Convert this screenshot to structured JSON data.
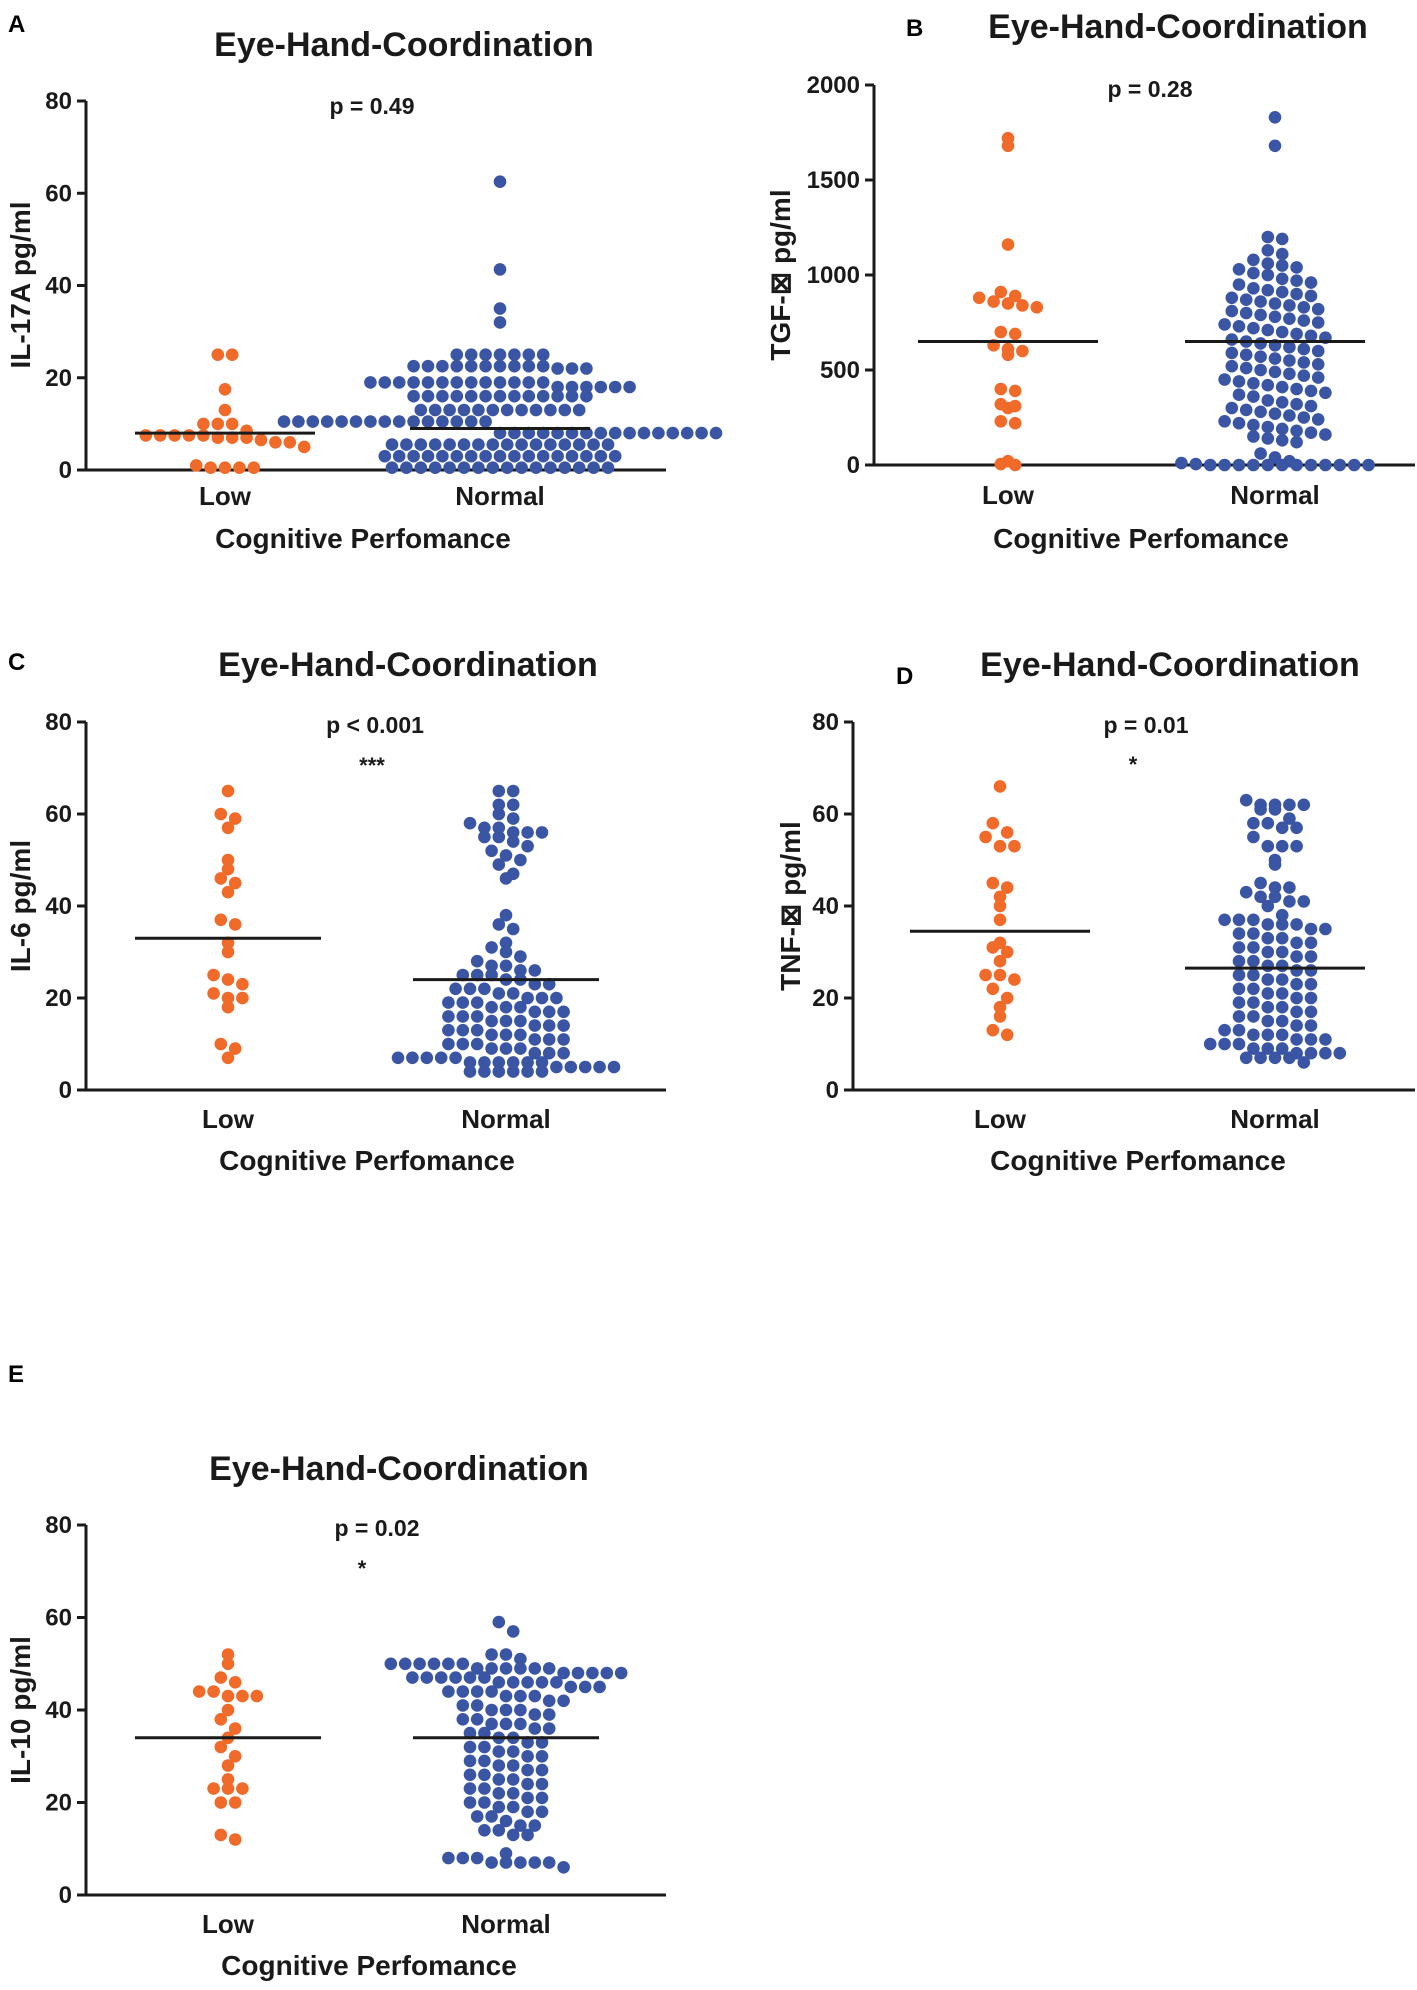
{
  "colors": {
    "low": "#f06a2a",
    "normal": "#3a55a4",
    "axis": "#1a1a1a",
    "median": "#1a1a1a"
  },
  "chart_data": [
    {
      "panel": "A",
      "type": "scatter",
      "title": "Eye-Hand-Coordination",
      "ylabel": "IL-17A pg/ml",
      "xlabel": "Cognitive Perfomance",
      "categories": [
        "Low",
        "Normal"
      ],
      "ylim": [
        0,
        80
      ],
      "yticks": [
        "0",
        "20",
        "40",
        "60",
        "80"
      ],
      "p_value": "p = 0.49",
      "significance": "",
      "medians": [
        8,
        9
      ],
      "series": [
        {
          "name": "Low",
          "values": [
            25,
            25,
            17.5,
            13,
            10,
            10,
            10,
            8.5,
            7.5,
            7.5,
            7.5,
            7.5,
            7.5,
            7,
            7,
            7,
            6.5,
            6,
            6,
            5,
            1,
            0.5,
            0.5,
            0.5,
            0.5
          ]
        },
        {
          "name": "Normal",
          "values": [
            62.5,
            43.5,
            35,
            32,
            25,
            25,
            25,
            25,
            25,
            25,
            25,
            22.5,
            22.5,
            22.5,
            22.5,
            22.5,
            22.5,
            22.5,
            22.5,
            22.5,
            22.5,
            22,
            22,
            22,
            19,
            19,
            19,
            19,
            19,
            19,
            19,
            19,
            19,
            19,
            19,
            19,
            19,
            18,
            18,
            18,
            18,
            18,
            18,
            16,
            16,
            16,
            16,
            16,
            16,
            16,
            16,
            16,
            16,
            16,
            16,
            16,
            13,
            13,
            13,
            13,
            13,
            13,
            13,
            13,
            13,
            13,
            13,
            13,
            10.5,
            10.5,
            10.5,
            10.5,
            10.5,
            10.5,
            10.5,
            10.5,
            10.5,
            10.5,
            10.5,
            10.5,
            10.5,
            10.5,
            10.5,
            8,
            8,
            8,
            8,
            8,
            8,
            8,
            8,
            8,
            8,
            8,
            8,
            8,
            8,
            8,
            8,
            5.5,
            5.5,
            5.5,
            5.5,
            5.5,
            5.5,
            5.5,
            5.5,
            5.5,
            5.5,
            5.5,
            5.5,
            5.5,
            5.5,
            5.5,
            5.5,
            3,
            3,
            3,
            3,
            3,
            3,
            3,
            3,
            3,
            3,
            3,
            3,
            3,
            3,
            3,
            3,
            3,
            0.5,
            0.5,
            0.5,
            0.5,
            0.5,
            0.5,
            0.5,
            0.5,
            0.5,
            0.5,
            0.5,
            0.5,
            0.5,
            0.5,
            0.5,
            0.5
          ]
        }
      ]
    },
    {
      "panel": "B",
      "type": "scatter",
      "title": "Eye-Hand-Coordination",
      "ylabel": "TGF-⊠ pg/ml",
      "xlabel": "Cognitive Perfomance",
      "categories": [
        "Low",
        "Normal"
      ],
      "ylim": [
        0,
        2000
      ],
      "yticks": [
        "0",
        "500",
        "1000",
        "1500",
        "2000"
      ],
      "p_value": "p = 0.28",
      "significance": "",
      "medians": [
        650,
        650
      ],
      "series": [
        {
          "name": "Low",
          "values": [
            1720,
            1680,
            1160,
            910,
            890,
            880,
            860,
            850,
            840,
            830,
            700,
            690,
            630,
            610,
            600,
            580,
            400,
            390,
            320,
            310,
            300,
            230,
            220,
            20,
            5,
            0
          ]
        },
        {
          "name": "Normal",
          "values": [
            1830,
            1680,
            1200,
            1190,
            1130,
            1110,
            1080,
            1060,
            1050,
            1040,
            1030,
            1010,
            1000,
            980,
            970,
            960,
            950,
            930,
            920,
            910,
            900,
            890,
            880,
            870,
            860,
            850,
            840,
            830,
            820,
            810,
            800,
            790,
            780,
            770,
            760,
            750,
            740,
            730,
            720,
            710,
            700,
            690,
            680,
            670,
            660,
            650,
            640,
            630,
            620,
            610,
            600,
            590,
            580,
            570,
            560,
            550,
            540,
            530,
            520,
            510,
            500,
            490,
            480,
            470,
            460,
            450,
            440,
            430,
            420,
            410,
            400,
            390,
            380,
            370,
            360,
            340,
            330,
            320,
            310,
            300,
            290,
            280,
            270,
            260,
            250,
            240,
            230,
            220,
            210,
            200,
            190,
            180,
            170,
            160,
            150,
            140,
            130,
            120,
            60,
            40,
            20,
            10,
            5,
            0,
            0,
            0,
            0,
            0,
            0,
            0,
            0,
            0,
            0,
            0,
            0
          ]
        }
      ]
    },
    {
      "panel": "C",
      "type": "scatter",
      "title": "Eye-Hand-Coordination",
      "ylabel": "IL-6 pg/ml",
      "xlabel": "Cognitive Perfomance",
      "categories": [
        "Low",
        "Normal"
      ],
      "ylim": [
        0,
        80
      ],
      "yticks": [
        "0",
        "20",
        "40",
        "60",
        "80"
      ],
      "p_value": "p < 0.001",
      "significance": "***",
      "medians": [
        33,
        24
      ],
      "series": [
        {
          "name": "Low",
          "values": [
            65,
            60,
            59,
            57,
            50,
            48,
            46,
            45,
            43,
            37,
            36,
            32,
            30,
            25,
            24,
            23,
            21,
            20,
            20,
            18,
            10,
            9,
            7
          ]
        },
        {
          "name": "Normal",
          "values": [
            65,
            65,
            62,
            62,
            60,
            59,
            58,
            57,
            57,
            56,
            56,
            56,
            55,
            55,
            54,
            53,
            52,
            51,
            50,
            49,
            47,
            46,
            38,
            36,
            35,
            32,
            31,
            30,
            29,
            28,
            27,
            27,
            26,
            26,
            25,
            25,
            25,
            24,
            24,
            23,
            23,
            22,
            22,
            22,
            21,
            21,
            20,
            20,
            20,
            19,
            19,
            19,
            18,
            18,
            18,
            17,
            17,
            17,
            16,
            16,
            16,
            15,
            15,
            15,
            14,
            14,
            14,
            13,
            13,
            13,
            12,
            12,
            12,
            11,
            11,
            11,
            10,
            10,
            10,
            9,
            9,
            9,
            8,
            8,
            8,
            7,
            7,
            7,
            7,
            7,
            6,
            6,
            6,
            6,
            6,
            6,
            5,
            5,
            5,
            5,
            5,
            4,
            4,
            4,
            4,
            4,
            4
          ]
        }
      ]
    },
    {
      "panel": "D",
      "type": "scatter",
      "title": "Eye-Hand-Coordination",
      "ylabel": "TNF-⊠ pg/ml",
      "xlabel": "Cognitive Perfomance",
      "categories": [
        "Low",
        "Normal"
      ],
      "ylim": [
        0,
        80
      ],
      "yticks": [
        "0",
        "20",
        "40",
        "60",
        "80"
      ],
      "p_value": "p = 0.01",
      "significance": "*",
      "medians": [
        34.5,
        26.5
      ],
      "series": [
        {
          "name": "Low",
          "values": [
            66,
            58,
            56,
            55,
            53,
            53,
            45,
            44,
            42,
            40,
            37,
            32,
            31,
            30,
            28,
            25,
            25,
            24,
            22,
            20,
            18,
            16,
            13,
            12
          ]
        },
        {
          "name": "Normal",
          "values": [
            63,
            62,
            62,
            62,
            62,
            61,
            61,
            59,
            58,
            58,
            57,
            57,
            55,
            53,
            53,
            53,
            50,
            49,
            45,
            44,
            44,
            43,
            42,
            42,
            41,
            41,
            40,
            38,
            37,
            37,
            37,
            36,
            36,
            36,
            35,
            35,
            34,
            34,
            33,
            33,
            32,
            32,
            31,
            31,
            30,
            30,
            29,
            29,
            28,
            28,
            27,
            27,
            26,
            26,
            25,
            25,
            24,
            24,
            23,
            23,
            22,
            22,
            21,
            21,
            20,
            20,
            19,
            19,
            18,
            18,
            17,
            17,
            16,
            16,
            15,
            15,
            14,
            14,
            13,
            13,
            12,
            12,
            12,
            11,
            11,
            11,
            10,
            10,
            10,
            9,
            9,
            9,
            8,
            8,
            8,
            8,
            7,
            7,
            7,
            7,
            6
          ]
        }
      ]
    },
    {
      "panel": "E",
      "type": "scatter",
      "title": "Eye-Hand-Coordination",
      "ylabel": "IL-10 pg/ml",
      "xlabel": "Cognitive Perfomance",
      "categories": [
        "Low",
        "Normal"
      ],
      "ylim": [
        0,
        80
      ],
      "yticks": [
        "0",
        "20",
        "40",
        "60",
        "80"
      ],
      "p_value": "p = 0.02",
      "significance": "*",
      "medians": [
        34,
        34
      ],
      "series": [
        {
          "name": "Low",
          "values": [
            52,
            50,
            47,
            46,
            44,
            44,
            43,
            43,
            43,
            40,
            38,
            36,
            34,
            32,
            30,
            28,
            25,
            23,
            23,
            23,
            20,
            20,
            13,
            12
          ]
        },
        {
          "name": "Normal",
          "values": [
            59,
            57,
            52,
            52,
            51,
            50,
            50,
            50,
            50,
            50,
            50,
            49,
            49,
            49,
            49,
            49,
            49,
            48,
            48,
            48,
            48,
            48,
            47,
            47,
            47,
            47,
            47,
            47,
            46,
            46,
            46,
            46,
            46,
            45,
            45,
            45,
            44,
            44,
            44,
            44,
            43,
            43,
            43,
            42,
            42,
            41,
            41,
            40,
            40,
            40,
            39,
            39,
            38,
            38,
            37,
            37,
            37,
            36,
            36,
            35,
            35,
            34,
            34,
            33,
            33,
            32,
            32,
            31,
            31,
            30,
            30,
            29,
            29,
            28,
            28,
            27,
            27,
            26,
            26,
            25,
            25,
            24,
            24,
            23,
            23,
            22,
            22,
            21,
            21,
            20,
            20,
            19,
            19,
            18,
            18,
            17,
            17,
            16,
            15,
            15,
            14,
            14,
            13,
            13,
            9,
            8,
            8,
            8,
            7,
            7,
            7,
            7,
            7,
            6
          ]
        }
      ]
    }
  ]
}
